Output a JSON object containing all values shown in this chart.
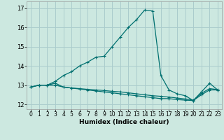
{
  "title": "",
  "xlabel": "Humidex (Indice chaleur)",
  "bg_color": "#cce8e0",
  "grid_color": "#aacccc",
  "line_color": "#007070",
  "xlim": [
    -0.5,
    23.5
  ],
  "ylim": [
    11.75,
    17.35
  ],
  "yticks": [
    12,
    13,
    14,
    15,
    16,
    17
  ],
  "xticks": [
    0,
    1,
    2,
    3,
    4,
    5,
    6,
    7,
    8,
    9,
    10,
    11,
    12,
    13,
    14,
    15,
    16,
    17,
    18,
    19,
    20,
    21,
    22,
    23
  ],
  "line1_y": [
    12.9,
    13.0,
    13.0,
    13.0,
    12.9,
    12.85,
    12.8,
    12.75,
    12.7,
    12.65,
    12.6,
    12.55,
    12.5,
    12.45,
    12.4,
    12.35,
    12.3,
    12.3,
    12.25,
    12.22,
    12.2,
    12.5,
    12.75,
    12.75
  ],
  "line2_y": [
    12.9,
    13.0,
    13.0,
    13.1,
    12.9,
    12.85,
    12.82,
    12.78,
    12.75,
    12.72,
    12.68,
    12.65,
    12.6,
    12.55,
    12.5,
    12.45,
    12.42,
    12.38,
    12.33,
    12.28,
    12.22,
    12.58,
    12.82,
    12.77
  ],
  "line3_y": [
    12.9,
    13.0,
    13.0,
    13.2,
    13.5,
    13.7,
    14.0,
    14.2,
    14.45,
    14.5,
    15.0,
    15.5,
    16.0,
    16.4,
    16.9,
    16.85,
    13.5,
    12.75,
    12.55,
    12.45,
    12.2,
    12.65,
    13.1,
    12.75
  ],
  "markersize": 3,
  "linewidth": 0.9
}
